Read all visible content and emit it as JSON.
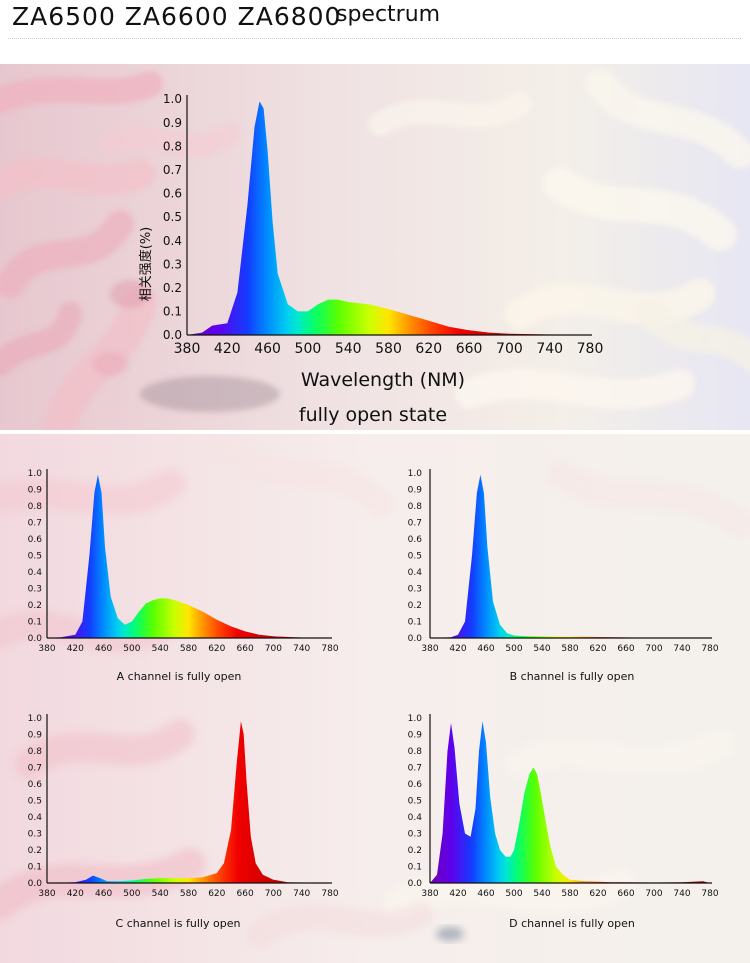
{
  "header": {
    "models": "ZA6500 ZA6600 ZA6800",
    "word": "spectrum"
  },
  "chart_data": [
    {
      "type": "area",
      "x_ticks": [
        380,
        420,
        460,
        500,
        540,
        580,
        620,
        660,
        700,
        740,
        780
      ],
      "y_ticks": [
        "0.0",
        "0.1",
        "0.2",
        "0.3",
        "0.4",
        "0.5",
        "0.6",
        "0.7",
        "0.8",
        "0.9",
        "1.0"
      ],
      "xlim": [
        380,
        780
      ],
      "ylim": [
        0,
        1.0
      ],
      "xlabel": "Wavelength (NM)",
      "ylabel": "相关强度(%)",
      "caption": "fully open state",
      "series": [
        {
          "x": [
            380,
            395,
            405,
            420,
            430,
            440,
            447,
            452,
            456,
            460,
            465,
            470,
            480,
            490,
            500,
            510,
            520,
            530,
            540,
            560,
            580,
            600,
            620,
            640,
            660,
            680,
            700,
            740,
            780
          ],
          "y": [
            0.0,
            0.01,
            0.04,
            0.05,
            0.18,
            0.55,
            0.88,
            0.99,
            0.96,
            0.78,
            0.48,
            0.26,
            0.13,
            0.1,
            0.1,
            0.13,
            0.15,
            0.15,
            0.14,
            0.13,
            0.11,
            0.085,
            0.06,
            0.035,
            0.02,
            0.01,
            0.005,
            0.002,
            0.0
          ]
        }
      ]
    },
    {
      "type": "area",
      "x_ticks": [
        380,
        420,
        460,
        500,
        540,
        580,
        620,
        660,
        700,
        740,
        780
      ],
      "y_ticks": [
        "0.0",
        "0.1",
        "0.2",
        "0.3",
        "0.4",
        "0.5",
        "0.6",
        "0.7",
        "0.8",
        "0.9",
        "1.0"
      ],
      "xlim": [
        380,
        780
      ],
      "ylim": [
        0,
        1.0
      ],
      "caption": "A channel is fully open",
      "series": [
        {
          "x": [
            380,
            400,
            420,
            430,
            440,
            447,
            452,
            457,
            462,
            470,
            480,
            490,
            500,
            510,
            520,
            530,
            540,
            550,
            560,
            580,
            600,
            620,
            640,
            660,
            680,
            700,
            740,
            780
          ],
          "y": [
            0.0,
            0.005,
            0.02,
            0.1,
            0.5,
            0.88,
            0.99,
            0.88,
            0.55,
            0.25,
            0.12,
            0.08,
            0.1,
            0.16,
            0.21,
            0.23,
            0.24,
            0.24,
            0.23,
            0.2,
            0.16,
            0.11,
            0.07,
            0.04,
            0.02,
            0.01,
            0.003,
            0.0
          ]
        }
      ]
    },
    {
      "type": "area",
      "x_ticks": [
        380,
        420,
        460,
        500,
        540,
        580,
        620,
        660,
        700,
        740,
        780
      ],
      "y_ticks": [
        "0.0",
        "0.1",
        "0.2",
        "0.3",
        "0.4",
        "0.5",
        "0.6",
        "0.7",
        "0.8",
        "0.9",
        "1.0"
      ],
      "xlim": [
        380,
        780
      ],
      "ylim": [
        0,
        1.0
      ],
      "caption": "B channel is fully open",
      "series": [
        {
          "x": [
            380,
            410,
            420,
            430,
            440,
            447,
            452,
            457,
            462,
            470,
            480,
            490,
            500,
            520,
            560,
            600,
            640,
            700,
            780
          ],
          "y": [
            0.0,
            0.005,
            0.02,
            0.1,
            0.5,
            0.88,
            0.99,
            0.88,
            0.55,
            0.22,
            0.08,
            0.03,
            0.015,
            0.01,
            0.008,
            0.007,
            0.005,
            0.002,
            0.0
          ]
        }
      ]
    },
    {
      "type": "area",
      "x_ticks": [
        380,
        420,
        460,
        500,
        540,
        580,
        620,
        660,
        700,
        740,
        780
      ],
      "y_ticks": [
        "0.0",
        "0.1",
        "0.2",
        "0.3",
        "0.4",
        "0.5",
        "0.6",
        "0.7",
        "0.8",
        "0.9",
        "1.0"
      ],
      "xlim": [
        380,
        780
      ],
      "ylim": [
        0,
        1.0
      ],
      "caption": "C channel is fully open",
      "series": [
        {
          "x": [
            380,
            420,
            435,
            445,
            455,
            465,
            480,
            500,
            520,
            540,
            560,
            580,
            600,
            620,
            630,
            640,
            648,
            654,
            658,
            662,
            668,
            675,
            685,
            700,
            720,
            780
          ],
          "y": [
            0.0,
            0.005,
            0.02,
            0.045,
            0.03,
            0.01,
            0.01,
            0.015,
            0.025,
            0.03,
            0.03,
            0.03,
            0.035,
            0.06,
            0.12,
            0.32,
            0.72,
            0.98,
            0.9,
            0.62,
            0.28,
            0.12,
            0.05,
            0.02,
            0.005,
            0.0
          ]
        }
      ]
    },
    {
      "type": "area",
      "x_ticks": [
        380,
        420,
        460,
        500,
        540,
        580,
        620,
        660,
        700,
        740,
        780
      ],
      "y_ticks": [
        "0.0",
        "0.1",
        "0.2",
        "0.3",
        "0.4",
        "0.5",
        "0.6",
        "0.7",
        "0.8",
        "0.9",
        "1.0"
      ],
      "xlim": [
        380,
        780
      ],
      "ylim": [
        0,
        1.0
      ],
      "caption": "D channel is fully open",
      "series": [
        {
          "x": [
            380,
            390,
            398,
            405,
            410,
            415,
            422,
            430,
            438,
            445,
            450,
            455,
            460,
            466,
            473,
            480,
            488,
            495,
            500,
            507,
            515,
            522,
            528,
            533,
            538,
            545,
            552,
            560,
            570,
            580,
            600,
            620,
            640,
            660,
            700,
            740,
            770,
            780
          ],
          "y": [
            0.0,
            0.05,
            0.3,
            0.8,
            0.97,
            0.82,
            0.48,
            0.3,
            0.28,
            0.45,
            0.8,
            0.98,
            0.85,
            0.52,
            0.3,
            0.2,
            0.16,
            0.16,
            0.2,
            0.35,
            0.55,
            0.66,
            0.7,
            0.66,
            0.55,
            0.38,
            0.22,
            0.1,
            0.05,
            0.02,
            0.01,
            0.008,
            0.005,
            0.004,
            0.003,
            0.005,
            0.01,
            0.0
          ]
        }
      ]
    }
  ]
}
